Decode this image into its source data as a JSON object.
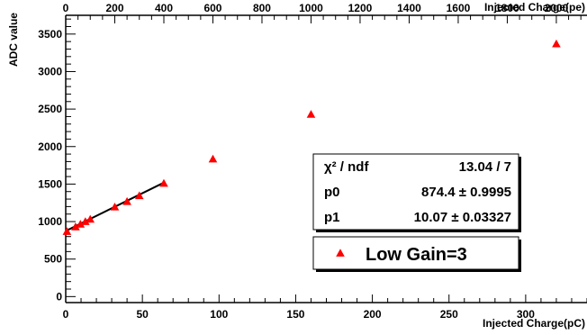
{
  "chart_data": {
    "type": "scatter",
    "xlabel": "Injected Charge(pC)",
    "x2label": "Injected Charge(pe)",
    "ylabel": "ADC value",
    "xlim": [
      0,
      340
    ],
    "x2lim": [
      0,
      2125
    ],
    "ylim": [
      -80,
      3750
    ],
    "x_ticks": [
      0,
      50,
      100,
      150,
      200,
      250,
      300
    ],
    "x2_ticks": [
      0,
      200,
      400,
      600,
      800,
      1000,
      1200,
      1400,
      1600,
      1800,
      2000
    ],
    "y_ticks": [
      0,
      500,
      1000,
      1500,
      2000,
      2500,
      3000,
      3500
    ],
    "series": [
      {
        "name": "Low Gain=3",
        "marker": "triangle",
        "color": "#ff0000",
        "x": [
          0.8,
          6.4,
          9.6,
          12.8,
          16,
          32,
          40,
          48,
          64,
          96,
          160,
          320
        ],
        "y": [
          868,
          930,
          965,
          1000,
          1032,
          1195,
          1268,
          1345,
          1510,
          1835,
          2430,
          3370
        ]
      }
    ],
    "fit": {
      "type": "linear",
      "x_range": [
        0,
        64
      ],
      "p0": 874.4,
      "p1": 10.07,
      "color": "#000000"
    }
  },
  "stats": {
    "rows": [
      {
        "label": "χ² / ndf",
        "value": "13.04 / 7"
      },
      {
        "label": "p0",
        "value": "874.4 ± 0.9995"
      },
      {
        "label": "p1",
        "value": "10.07 ± 0.03327"
      }
    ]
  },
  "legend": {
    "entries": [
      {
        "label": "Low Gain=3",
        "marker": "triangle",
        "color": "#ff0000"
      }
    ]
  }
}
